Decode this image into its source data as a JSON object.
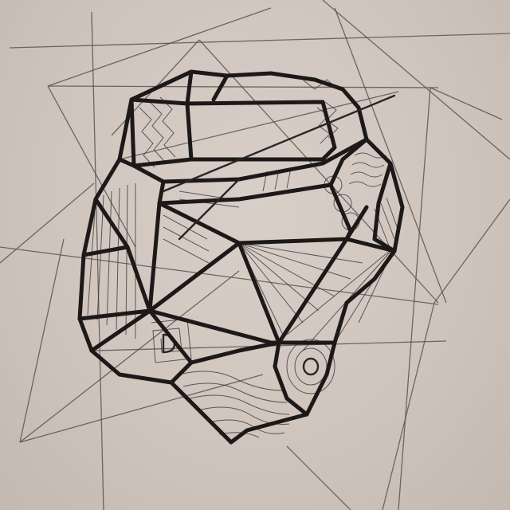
{
  "image": {
    "subject": "hand-drawn-geometric-rock",
    "medium": "ink-on-paper",
    "colors": {
      "paper": "#d2c9c1",
      "ink": "#1c1918",
      "pencil": "#5a5350"
    }
  }
}
